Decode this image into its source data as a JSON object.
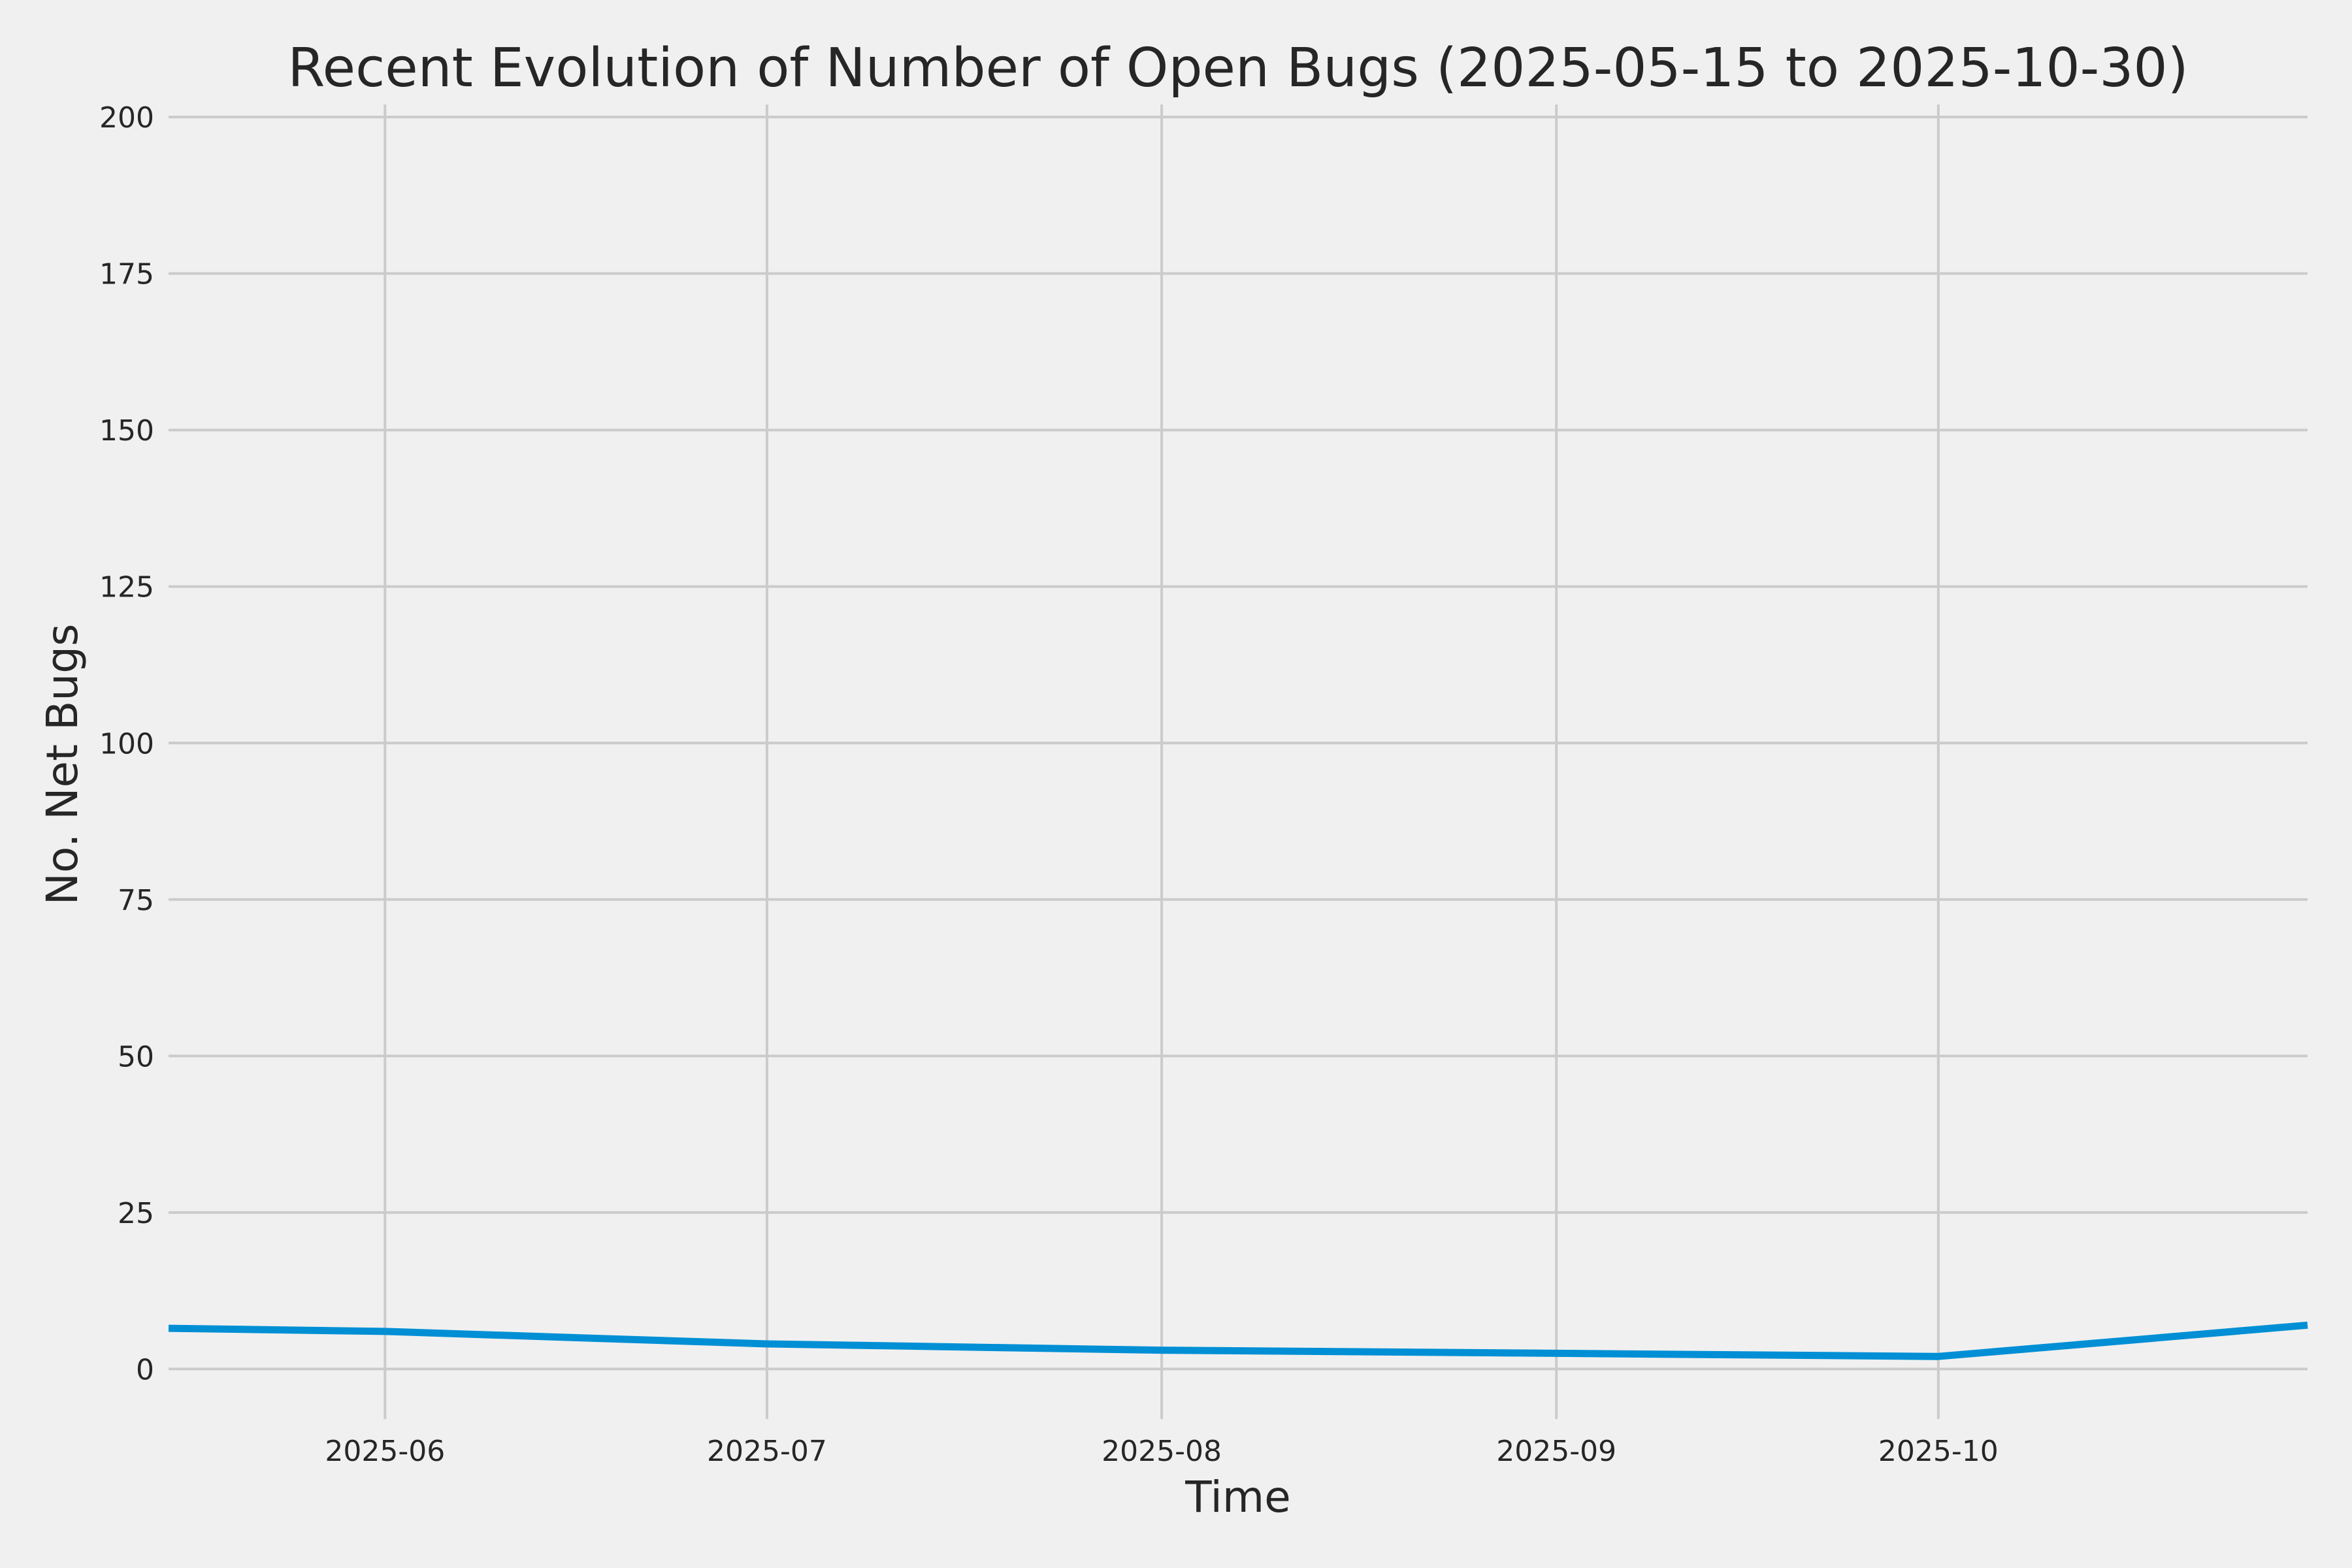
{
  "chart_data": {
    "type": "line",
    "title": "Recent Evolution of Number of Open Bugs (2025-05-15 to 2025-10-30)",
    "xlabel": "Time",
    "ylabel": "No. Net Bugs",
    "x_type": "date",
    "xlim": [
      "2025-05-15",
      "2025-10-30"
    ],
    "ylim": [
      -8,
      202
    ],
    "x_ticks": [
      "2025-06-01",
      "2025-07-01",
      "2025-08-01",
      "2025-09-01",
      "2025-10-01"
    ],
    "x_tick_labels": [
      "2025-06",
      "2025-07",
      "2025-08",
      "2025-09",
      "2025-10"
    ],
    "y_ticks": [
      0,
      25,
      50,
      75,
      100,
      125,
      150,
      175,
      200
    ],
    "y_tick_labels": [
      "0",
      "25",
      "50",
      "75",
      "100",
      "125",
      "150",
      "175",
      "200"
    ],
    "grid": true,
    "legend": "none",
    "series": [
      {
        "color": "#008fd5",
        "points": [
          {
            "x": "2025-05-15",
            "y": 6.5
          },
          {
            "x": "2025-06-01",
            "y": 6
          },
          {
            "x": "2025-07-01",
            "y": 4
          },
          {
            "x": "2025-08-01",
            "y": 3
          },
          {
            "x": "2025-09-01",
            "y": 2.5
          },
          {
            "x": "2025-10-01",
            "y": 2
          },
          {
            "x": "2025-10-30",
            "y": 7
          }
        ]
      }
    ]
  }
}
